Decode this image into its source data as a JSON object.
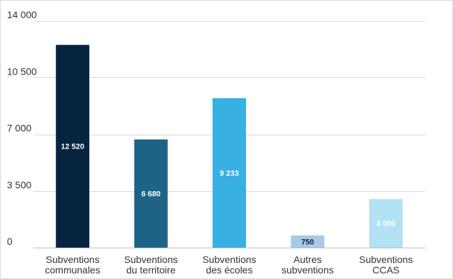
{
  "chart_data": {
    "type": "bar",
    "categories": [
      [
        "Subventions",
        "communales"
      ],
      [
        "Subventions",
        "du territoire"
      ],
      [
        "Subventions",
        "des écoles"
      ],
      [
        "Autres",
        "subventions"
      ],
      [
        "Subventions",
        "CCAS"
      ]
    ],
    "values": [
      12520,
      6680,
      9233,
      750,
      3000
    ],
    "data_labels": [
      "12 520",
      "6 680",
      "9 233",
      "750",
      "3 000"
    ],
    "bar_colors": [
      "#06243f",
      "#1d6386",
      "#38b0e2",
      "#a8c9e7",
      "#b2e2f3"
    ],
    "label_colors": [
      "#ffffff",
      "#ffffff",
      "#ffffff",
      "#06243f",
      "#ffffff"
    ],
    "yticks": [
      0,
      3500,
      7000,
      10500,
      14000
    ],
    "ytick_labels": [
      "0",
      "3 500",
      "7 000",
      "10 500",
      "14 000"
    ],
    "ylim": [
      0,
      14000
    ],
    "grid": true,
    "title": "",
    "xlabel": "",
    "ylabel": ""
  }
}
